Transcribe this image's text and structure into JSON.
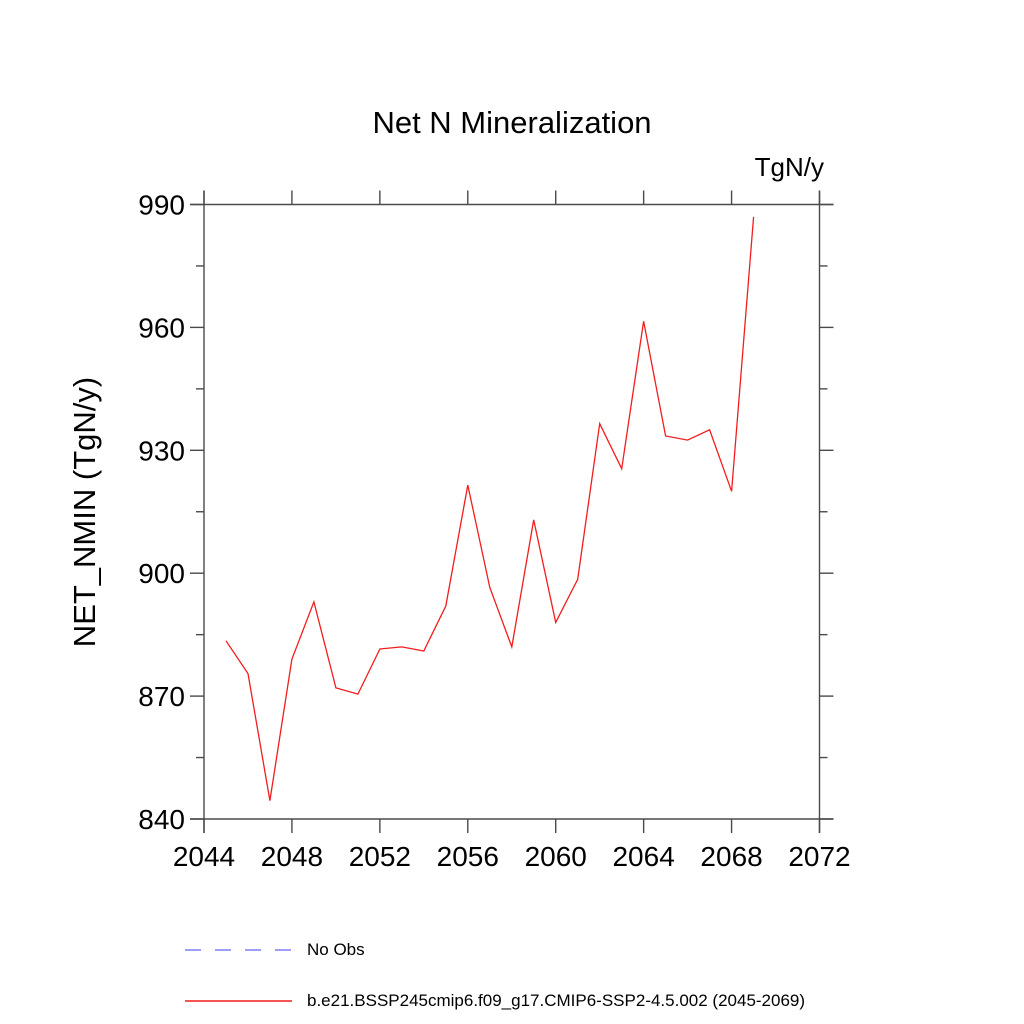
{
  "header": {
    "title": "Net N Mineralization",
    "units_label": "TgN/y"
  },
  "chart_data": {
    "type": "line",
    "title": "Net N Mineralization",
    "ylabel": "NET_NMIN  (TgN/y)",
    "units": "TgN/y",
    "xlim": [
      2044,
      2072
    ],
    "ylim": [
      840,
      990
    ],
    "xticks": [
      2044,
      2048,
      2052,
      2056,
      2060,
      2064,
      2068,
      2072
    ],
    "yticks": [
      840,
      870,
      900,
      930,
      960,
      990
    ],
    "y_minor_ticks": [
      855,
      885,
      915,
      945,
      975
    ],
    "grid": false,
    "legend_position": "bottom-left",
    "x": [
      2045,
      2046,
      2047,
      2048,
      2049,
      2050,
      2051,
      2052,
      2053,
      2054,
      2055,
      2056,
      2057,
      2058,
      2059,
      2060,
      2061,
      2062,
      2063,
      2064,
      2065,
      2066,
      2067,
      2068,
      2069
    ],
    "series": [
      {
        "name": "b.e21.BSSP245cmip6.f09_g17.CMIP6-SSP2-4.5.002 (2045-2069)",
        "color": "#f21d1d",
        "style": "solid",
        "values": [
          883.5,
          875.5,
          844.5,
          879,
          893,
          872,
          870.5,
          881.5,
          882,
          881,
          892,
          921.5,
          896.5,
          882,
          913,
          888,
          898.5,
          936.5,
          925.5,
          961.5,
          933.5,
          932.5,
          935,
          920,
          987
        ]
      }
    ],
    "legend": [
      {
        "label": "No Obs",
        "color": "#7f7fff",
        "style": "dashed"
      },
      {
        "label": "b.e21.BSSP245cmip6.f09_g17.CMIP6-SSP2-4.5.002 (2045-2069)",
        "color": "#f21d1d",
        "style": "solid"
      }
    ]
  }
}
